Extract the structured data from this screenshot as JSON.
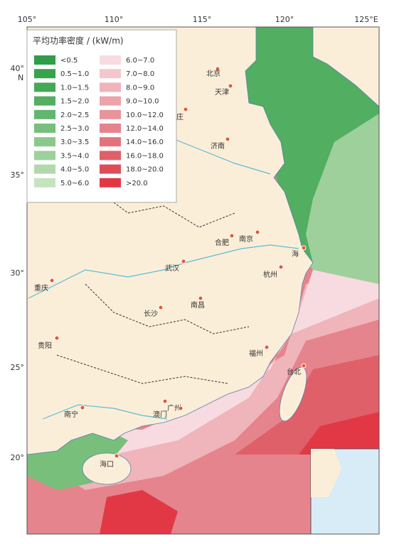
{
  "axes": {
    "longitude": [
      "105°",
      "110°",
      "115°",
      "120°",
      "125°E"
    ],
    "latitude": [
      "40°",
      "35°",
      "30°",
      "25°",
      "20°"
    ],
    "north": "N"
  },
  "legend": {
    "title": "平均功率密度 / (kW/m)",
    "items": [
      {
        "label": "<0.5",
        "color": "#2e9e48"
      },
      {
        "label": "0.5~1.0",
        "color": "#37a34f"
      },
      {
        "label": "1.0~1.5",
        "color": "#44a857"
      },
      {
        "label": "1.5~2.0",
        "color": "#52ae61"
      },
      {
        "label": "2.0~2.5",
        "color": "#63b66d"
      },
      {
        "label": "2.5~3.0",
        "color": "#77bf7b"
      },
      {
        "label": "3.0~3.5",
        "color": "#8ac88b"
      },
      {
        "label": "3.5~4.0",
        "color": "#9ed09b"
      },
      {
        "label": "4.0~5.0",
        "color": "#b2d9ac"
      },
      {
        "label": "5.0~6.0",
        "color": "#c6e3c0"
      },
      {
        "label": "6.0~7.0",
        "color": "#f8dbe0"
      },
      {
        "label": "7.0~8.0",
        "color": "#f4c7cd"
      },
      {
        "label": "8.0~9.0",
        "color": "#f0b4bb"
      },
      {
        "label": "9.0~10.0",
        "color": "#eca3aa"
      },
      {
        "label": "10.0~12.0",
        "color": "#e8949b"
      },
      {
        "label": "12.0~14.0",
        "color": "#e5848c"
      },
      {
        "label": "14.0~16.0",
        "color": "#e2737c"
      },
      {
        "label": "16.0~18.0",
        "color": "#e0606a"
      },
      {
        "label": "18.0~20.0",
        "color": "#df4c58"
      },
      {
        "label": ">20.0",
        "color": "#e23846"
      }
    ]
  },
  "cities": [
    "北京",
    "天津",
    "济南",
    "合肥",
    "南京",
    "海",
    "杭州",
    "武汉",
    "南昌",
    "长沙",
    "福州",
    "台北",
    "重庆",
    "贵阳",
    "南宁",
    "广州",
    "澳门",
    "海口",
    "庄"
  ]
}
